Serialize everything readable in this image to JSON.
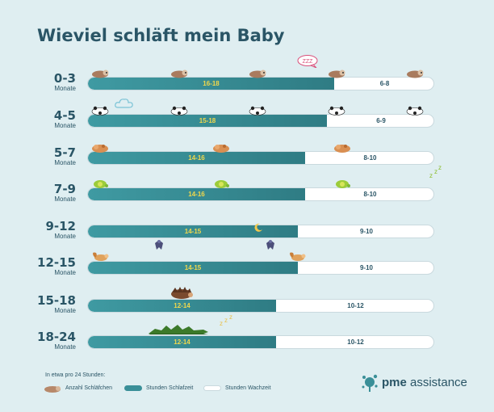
{
  "title": "Wieviel schläft mein Baby",
  "month_label": "Monate",
  "chart_data": {
    "type": "bar",
    "orientation": "horizontal",
    "stacked": true,
    "total_hours": 24,
    "categories": [
      "0-3",
      "4-5",
      "5-7",
      "7-9",
      "9-12",
      "12-15",
      "15-18",
      "18-24"
    ],
    "series": [
      {
        "name": "Stunden Schlafzeit",
        "labels": [
          "16-18",
          "15-18",
          "14-16",
          "14-16",
          "14-15",
          "14-15",
          "12-14",
          "12-14"
        ],
        "values": [
          17,
          16.5,
          15,
          15,
          14.5,
          14.5,
          13,
          13
        ],
        "color": "#3a8f98"
      },
      {
        "name": "Stunden Wachzeit",
        "labels": [
          "6-8",
          "6-9",
          "8-10",
          "8-10",
          "9-10",
          "9-10",
          "10-12",
          "10-12"
        ],
        "values": [
          7,
          7.5,
          9,
          9,
          9.5,
          9.5,
          11,
          11
        ],
        "color": "#ffffff"
      },
      {
        "name": "Anzahl Schläfchen",
        "values": [
          5,
          5,
          3,
          3,
          2,
          2,
          1,
          1
        ]
      }
    ],
    "animals": [
      "sloth",
      "panda",
      "dog",
      "turtle",
      "bat",
      "squirrel",
      "hedgehog",
      "crocodile"
    ]
  },
  "legend": {
    "heading": "In etwa pro 24 Stunden:",
    "items": [
      "Anzahl Schläfchen",
      "Stunden Schlafzeit",
      "Stunden Wachzeit"
    ]
  },
  "extras": {
    "zzz": "ZZZ",
    "cloud": "cloud-icon",
    "moon": "moon-icon"
  },
  "brand": {
    "bold": "pme",
    "rest": " assistance",
    "color": "#3a8f98"
  }
}
